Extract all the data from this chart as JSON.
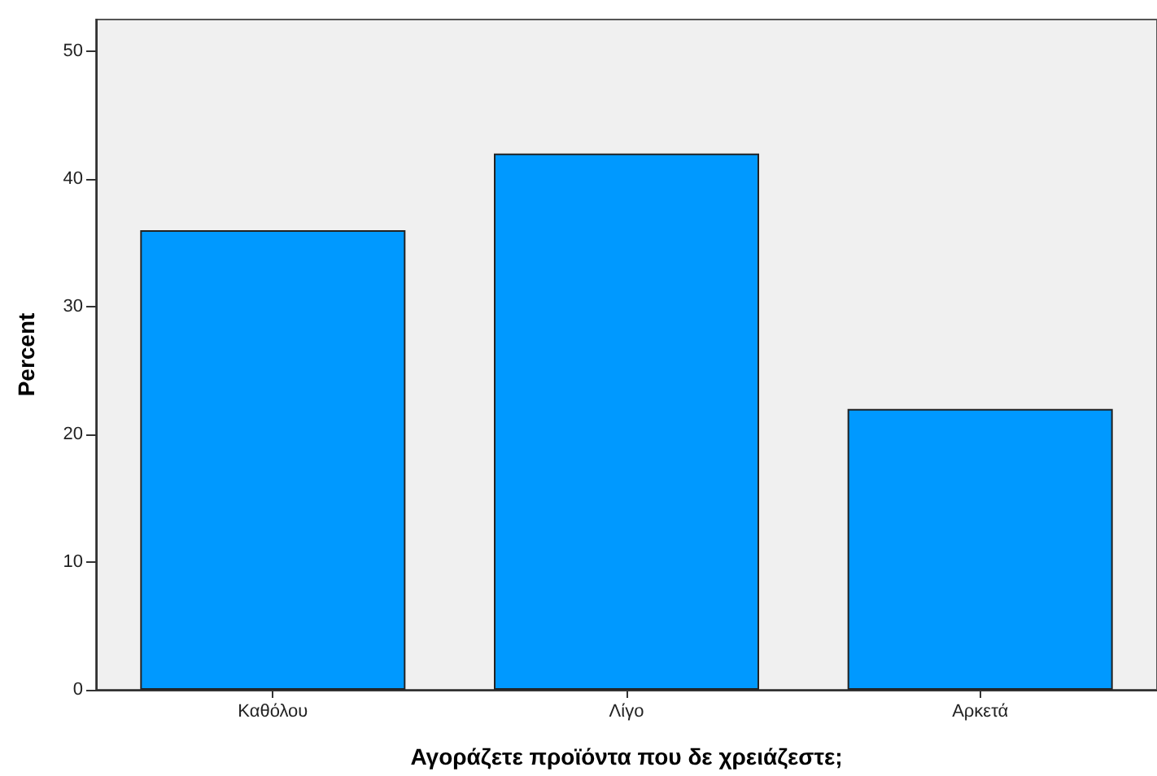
{
  "chart_data": {
    "type": "bar",
    "xlabel": "Αγοράζετε προϊόντα που δε χρειάζεστε;",
    "ylabel": "Percent",
    "categories": [
      "Καθόλου",
      "Λίγο",
      "Αρκετά"
    ],
    "values": [
      36,
      42,
      22
    ],
    "color": "#0099ff",
    "ylim": [
      0,
      52.5
    ],
    "yticks": [
      0,
      10,
      20,
      30,
      40,
      50
    ],
    "grid": false
  }
}
